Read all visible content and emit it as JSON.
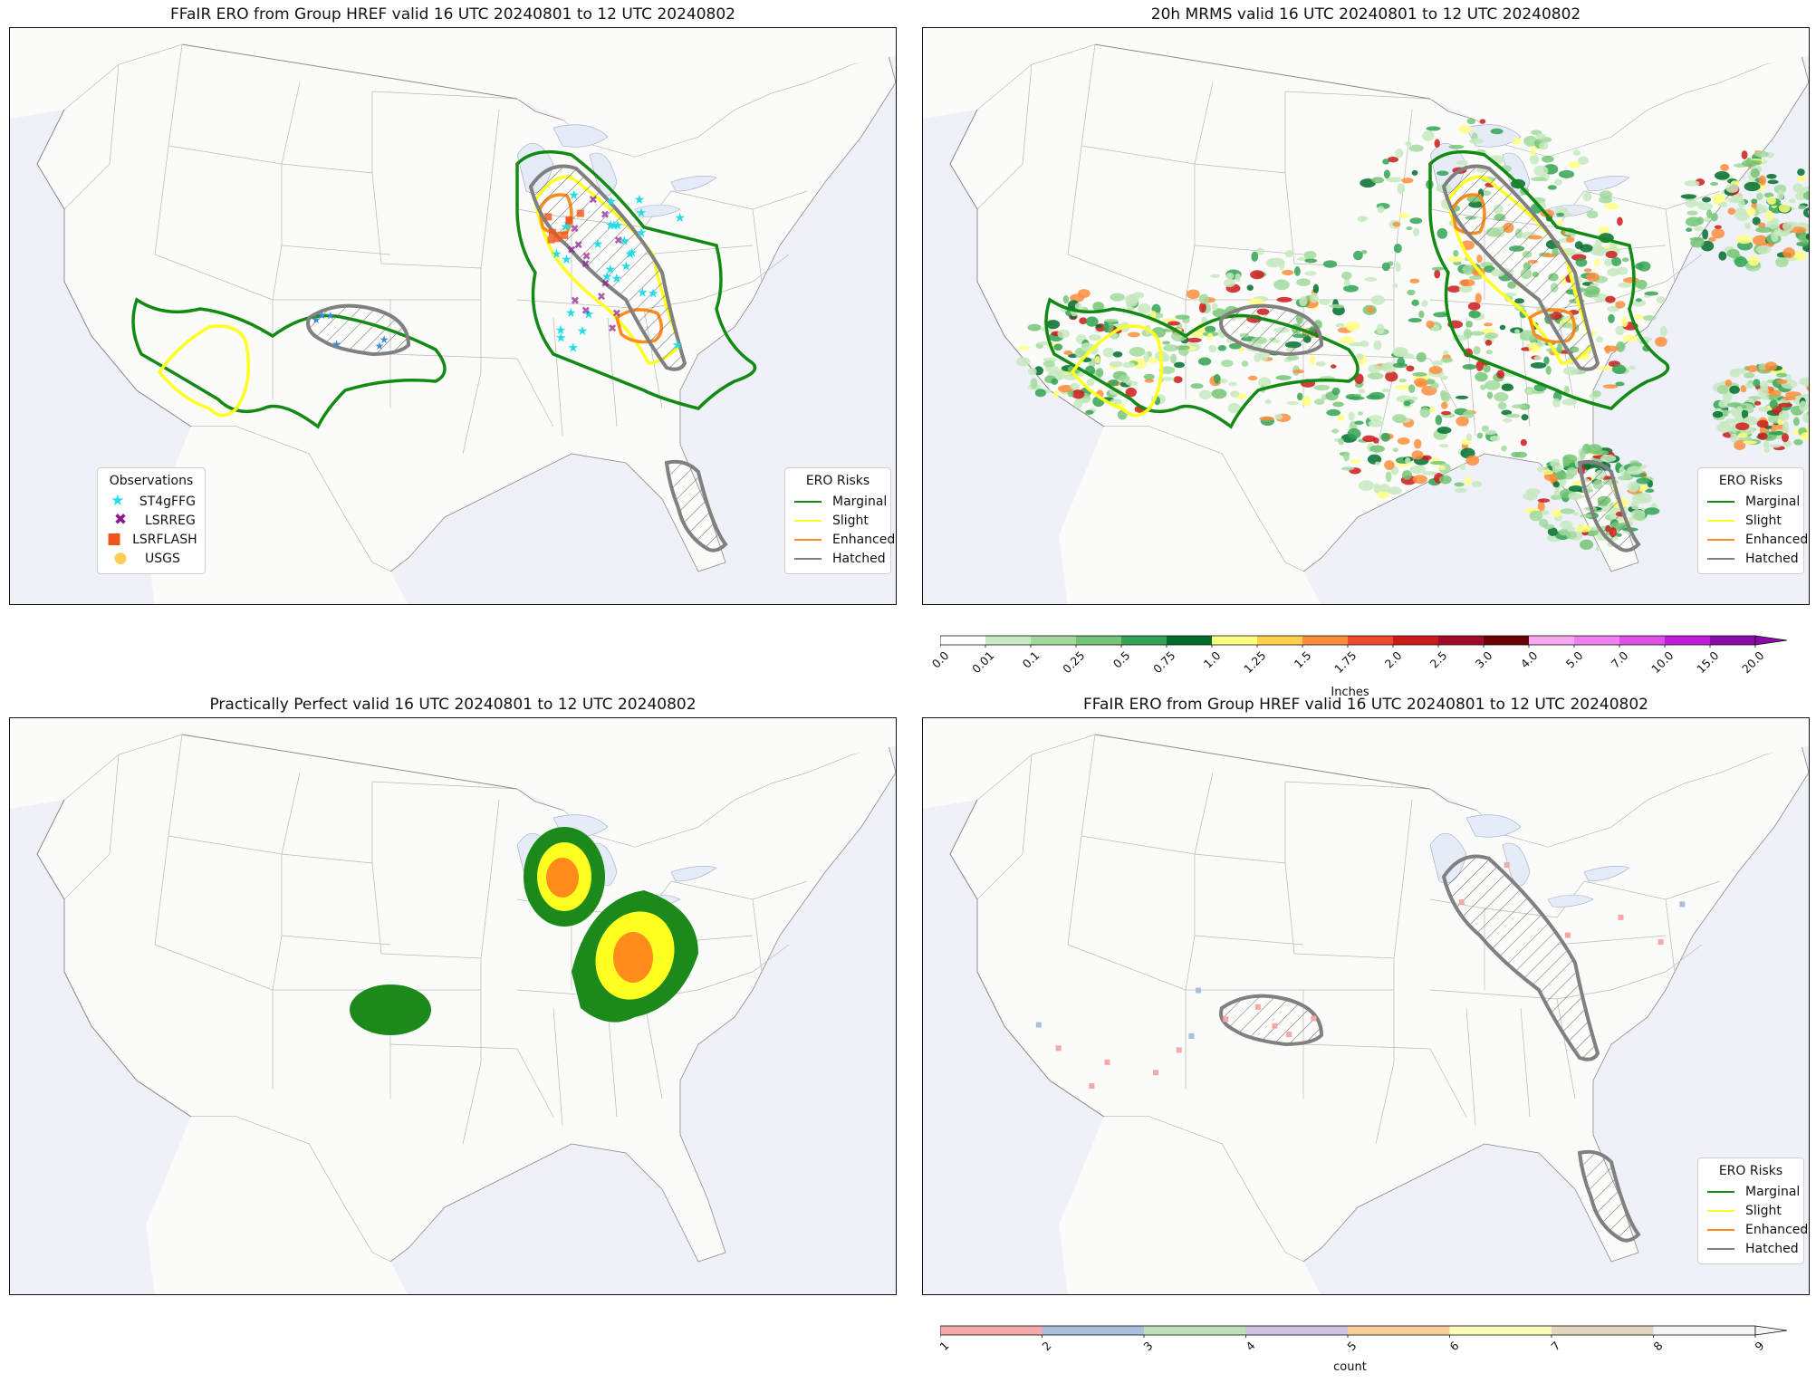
{
  "panels": {
    "tl": {
      "title": "FFaIR ERO from Group HREF valid 16 UTC 20240801 to 12 UTC 20240802",
      "obs_legend": {
        "title": "Observations",
        "items": [
          {
            "label": "ST4gFFG",
            "symbol": "★",
            "color": "#22dde6"
          },
          {
            "label": "LSRREG",
            "symbol": "✖",
            "color": "#8a1a8c"
          },
          {
            "label": "LSRFLASH",
            "symbol": "■",
            "color": "#f0541a"
          },
          {
            "label": "USGS",
            "symbol": "●",
            "color": "#ffcc55"
          }
        ]
      }
    },
    "tr": {
      "title": "20h MRMS valid 16 UTC 20240801 to 12 UTC 20240802"
    },
    "bl": {
      "title": "Practically Perfect valid 16 UTC 20240801 to 12 UTC 20240802"
    },
    "br": {
      "title": "FFaIR ERO from Group HREF valid 16 UTC 20240801 to 12 UTC 20240802"
    }
  },
  "ero_legend": {
    "title": "ERO Risks",
    "items": [
      {
        "label": "Marginal",
        "color": "#138a13"
      },
      {
        "label": "Slight",
        "color": "#ffff22"
      },
      {
        "label": "Enhanced",
        "color": "#ff8c1a"
      },
      {
        "label": "Hatched",
        "color": "#808080"
      }
    ]
  },
  "precip_colorbar": {
    "label": "Inches",
    "ticks": [
      "0.0",
      "0.01",
      "0.1",
      "0.25",
      "0.5",
      "0.75",
      "1.0",
      "1.25",
      "1.5",
      "1.75",
      "2.0",
      "2.5",
      "3.0",
      "4.0",
      "5.0",
      "7.0",
      "10.0",
      "15.0",
      "20.0"
    ],
    "colors": [
      "#ffffff",
      "#c7e9c0",
      "#a1d99b",
      "#74c476",
      "#31a354",
      "#006d2c",
      "#ffff80",
      "#fdd049",
      "#fd8d3c",
      "#f0492a",
      "#cc1a1a",
      "#a30a2a",
      "#6b0000",
      "#f9a6f0",
      "#f27ef0",
      "#e04ee8",
      "#c21ad9",
      "#8a0aaa"
    ]
  },
  "count_colorbar": {
    "label": "count",
    "ticks": [
      "1",
      "2",
      "3",
      "4",
      "5",
      "6",
      "7",
      "8",
      "9"
    ],
    "colors": [
      "#f4a8a8",
      "#a9bfdd",
      "#bde0b6",
      "#cfc0df",
      "#f7cd98",
      "#fdfbb8",
      "#e2d6bd",
      "#f4f4f4"
    ]
  }
}
